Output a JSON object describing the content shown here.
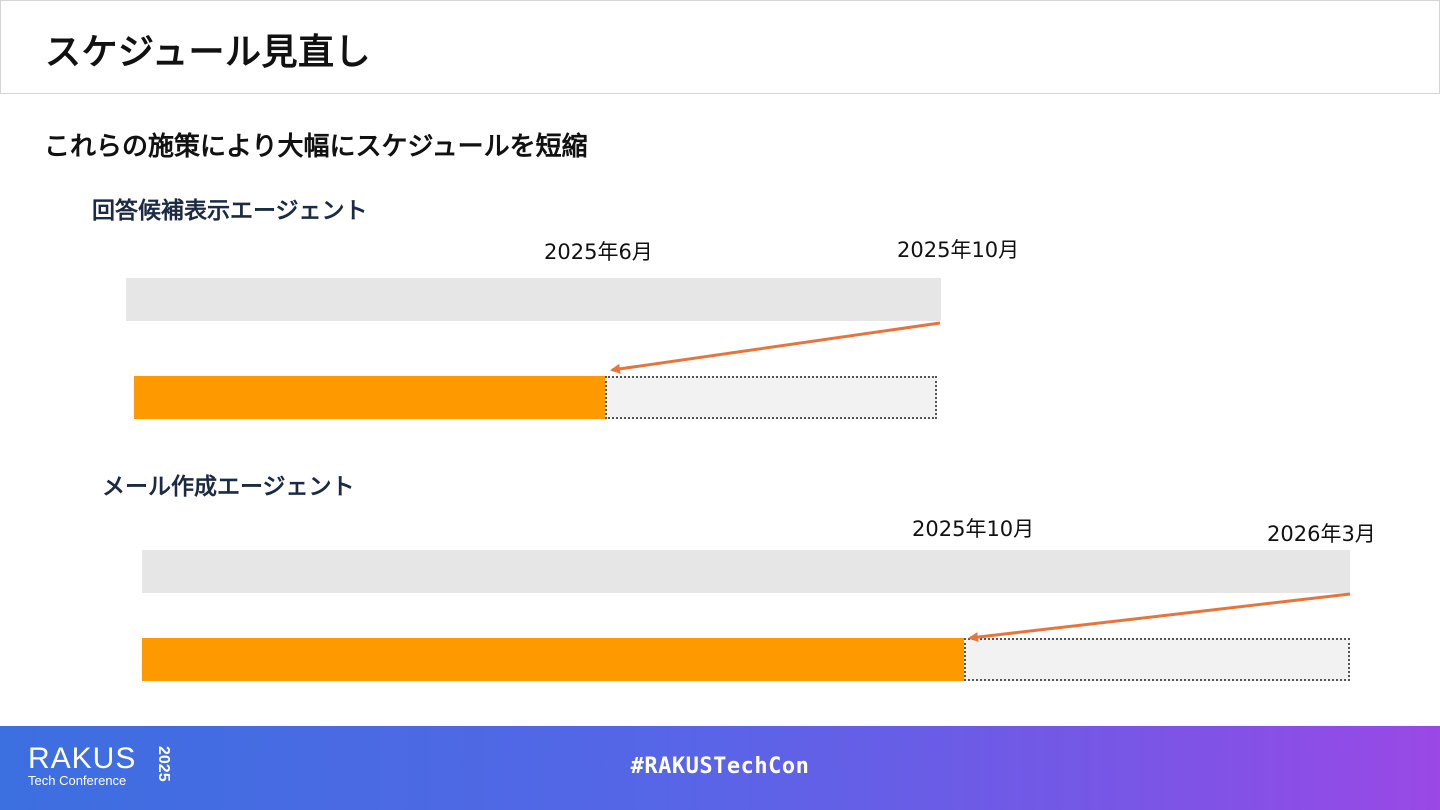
{
  "slide": {
    "title": "スケジュール見直し",
    "subtitle": "これらの施策により大幅にスケジュールを短縮"
  },
  "agents": [
    {
      "label": "回答候補表示エージェント",
      "new_date": "2025年6月",
      "old_date": "2025年10月"
    },
    {
      "label": "メール作成エージェント",
      "new_date": "2025年10月",
      "old_date": "2026年3月"
    }
  ],
  "colors": {
    "accent": "#ff9900",
    "arrow": "#e8743b",
    "original_bar": "#e6e6e6",
    "saved_bar": "#f2f2f2"
  },
  "footer": {
    "logo_main": "RAKUS",
    "logo_sub": "Tech Conference",
    "logo_year": "2025",
    "hashtag": "#RAKUSTechCon"
  }
}
